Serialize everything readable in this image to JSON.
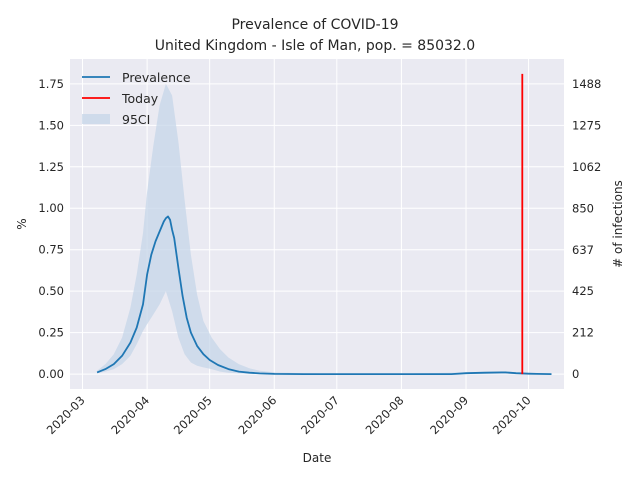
{
  "chart_data": {
    "type": "line",
    "title": "Prevalence of COVID-19",
    "subtitle": "United Kingdom - Isle of Man, pop. = 85032.0",
    "xlabel": "Date",
    "ylabel": "%",
    "ylabel_right": "# of infections",
    "ylim": [
      -0.09,
      1.9
    ],
    "x_ticks": [
      "2020-03",
      "2020-04",
      "2020-05",
      "2020-06",
      "2020-07",
      "2020-08",
      "2020-09",
      "2020-10"
    ],
    "y_ticks": [
      0.0,
      0.25,
      0.5,
      0.75,
      1.0,
      1.25,
      1.5,
      1.75
    ],
    "y_tick_labels": [
      "0.00",
      "0.25",
      "0.50",
      "0.75",
      "1.00",
      "1.25",
      "1.50",
      "1.75"
    ],
    "y_right_ticks": [
      0,
      212,
      425,
      637,
      850,
      1062,
      1275,
      1488
    ],
    "grid": true,
    "legend_position": "top-left",
    "legend": [
      "Prevalence",
      "Today",
      "95CI"
    ],
    "series": [
      {
        "name": "Prevalence",
        "color": "#1f77b4",
        "x": [
          "2020-03-08",
          "2020-03-12",
          "2020-03-16",
          "2020-03-20",
          "2020-03-24",
          "2020-03-27",
          "2020-03-30",
          "2020-04-01",
          "2020-04-03",
          "2020-04-05",
          "2020-04-07",
          "2020-04-09",
          "2020-04-10",
          "2020-04-11",
          "2020-04-12",
          "2020-04-13",
          "2020-04-14",
          "2020-04-16",
          "2020-04-18",
          "2020-04-20",
          "2020-04-22",
          "2020-04-25",
          "2020-04-28",
          "2020-05-01",
          "2020-05-05",
          "2020-05-10",
          "2020-05-15",
          "2020-05-20",
          "2020-05-25",
          "2020-06-01",
          "2020-06-15",
          "2020-07-01",
          "2020-08-01",
          "2020-08-25",
          "2020-09-01",
          "2020-09-10",
          "2020-09-18",
          "2020-09-20",
          "2020-09-25",
          "2020-10-01",
          "2020-10-05",
          "2020-10-12"
        ],
        "values": [
          0.01,
          0.03,
          0.06,
          0.11,
          0.19,
          0.28,
          0.42,
          0.6,
          0.72,
          0.8,
          0.86,
          0.92,
          0.94,
          0.95,
          0.93,
          0.87,
          0.82,
          0.64,
          0.47,
          0.34,
          0.25,
          0.17,
          0.12,
          0.085,
          0.055,
          0.03,
          0.015,
          0.008,
          0.004,
          0.001,
          0.0,
          0.0,
          0.0,
          0.0,
          0.005,
          0.008,
          0.01,
          0.01,
          0.005,
          0.002,
          0.001,
          0.0
        ]
      },
      {
        "name": "Today",
        "color": "#ff0000",
        "x": [
          "2020-09-28",
          "2020-09-28"
        ],
        "values": [
          0.0,
          1.81
        ]
      }
    ],
    "band": {
      "name": "95CI",
      "color": "#c5d5e8",
      "x": [
        "2020-03-08",
        "2020-03-12",
        "2020-03-16",
        "2020-03-20",
        "2020-03-24",
        "2020-03-27",
        "2020-03-30",
        "2020-04-01",
        "2020-04-04",
        "2020-04-07",
        "2020-04-10",
        "2020-04-13",
        "2020-04-16",
        "2020-04-19",
        "2020-04-22",
        "2020-04-25",
        "2020-04-28",
        "2020-05-02",
        "2020-05-06",
        "2020-05-10",
        "2020-05-15",
        "2020-05-20",
        "2020-05-25",
        "2020-06-01",
        "2020-06-15",
        "2020-07-01",
        "2020-08-01",
        "2020-09-01",
        "2020-10-01",
        "2020-10-12"
      ],
      "lower": [
        0.005,
        0.015,
        0.03,
        0.06,
        0.11,
        0.18,
        0.26,
        0.3,
        0.36,
        0.42,
        0.5,
        0.38,
        0.22,
        0.12,
        0.07,
        0.05,
        0.04,
        0.03,
        0.015,
        0.008,
        0.004,
        0.002,
        0.001,
        0.0,
        0.0,
        0.0,
        0.0,
        0.0,
        0.0,
        0.0
      ],
      "upper": [
        0.02,
        0.06,
        0.12,
        0.22,
        0.4,
        0.6,
        0.85,
        1.1,
        1.38,
        1.62,
        1.75,
        1.68,
        1.4,
        1.05,
        0.72,
        0.48,
        0.32,
        0.22,
        0.15,
        0.1,
        0.06,
        0.035,
        0.02,
        0.01,
        0.005,
        0.002,
        0.002,
        0.01,
        0.005,
        0.002
      ]
    }
  }
}
